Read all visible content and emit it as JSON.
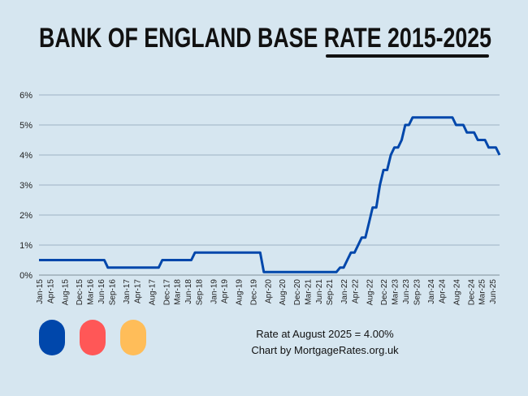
{
  "title": "BANK OF ENGLAND BASE RATE 2015-2025",
  "footer": {
    "rate_note": "Rate at August 2025 = 4.00%",
    "credit": "Chart by MortgageRates.org.uk"
  },
  "legend_pills": [
    {
      "color": "#0047ab"
    },
    {
      "color": "#ff5757"
    },
    {
      "color": "#ffbd59"
    }
  ],
  "colors": {
    "background": "#d6e6f0",
    "line": "#0047ab",
    "grid": "#9fb3c3"
  },
  "chart_data": {
    "type": "line",
    "title": "BANK OF ENGLAND BASE RATE 2015-2025",
    "xlabel": "",
    "ylabel": "",
    "x_range": [
      "2015-01",
      "2025-08"
    ],
    "ylim": [
      0,
      6
    ],
    "y_ticks": [
      "0%",
      "1%",
      "2%",
      "3%",
      "4%",
      "5%",
      "6%"
    ],
    "grid": "horizontal",
    "x_tick_labels": [
      "Jan-15",
      "Apr-15",
      "Aug-15",
      "Dec-15",
      "Mar-16",
      "Jun-16",
      "Sep-16",
      "Jan-17",
      "Apr-17",
      "Aug-17",
      "Dec-17",
      "Mar-18",
      "Jun-18",
      "Sep-18",
      "Jan-19",
      "Apr-19",
      "Aug-19",
      "Dec-19",
      "Apr-20",
      "Aug-20",
      "Dec-20",
      "Mar-21",
      "Jun-21",
      "Sep-21",
      "Jan-22",
      "Apr-22",
      "Aug-22",
      "Dec-22",
      "Mar-23",
      "Jun-23",
      "Sep-23",
      "Jan-24",
      "Apr-24",
      "Aug-24",
      "Dec-24",
      "Mar-25",
      "Jun-25"
    ],
    "rate_changes": [
      {
        "month": "2015-01",
        "rate": 0.5
      },
      {
        "month": "2016-08",
        "rate": 0.25
      },
      {
        "month": "2017-11",
        "rate": 0.5
      },
      {
        "month": "2018-08",
        "rate": 0.75
      },
      {
        "month": "2020-03",
        "rate": 0.1
      },
      {
        "month": "2021-12",
        "rate": 0.25
      },
      {
        "month": "2022-02",
        "rate": 0.5
      },
      {
        "month": "2022-03",
        "rate": 0.75
      },
      {
        "month": "2022-05",
        "rate": 1.0
      },
      {
        "month": "2022-06",
        "rate": 1.25
      },
      {
        "month": "2022-08",
        "rate": 1.75
      },
      {
        "month": "2022-09",
        "rate": 2.25
      },
      {
        "month": "2022-11",
        "rate": 3.0
      },
      {
        "month": "2022-12",
        "rate": 3.5
      },
      {
        "month": "2023-02",
        "rate": 4.0
      },
      {
        "month": "2023-03",
        "rate": 4.25
      },
      {
        "month": "2023-05",
        "rate": 4.5
      },
      {
        "month": "2023-06",
        "rate": 5.0
      },
      {
        "month": "2023-08",
        "rate": 5.25
      },
      {
        "month": "2024-08",
        "rate": 5.0
      },
      {
        "month": "2024-11",
        "rate": 4.75
      },
      {
        "month": "2025-02",
        "rate": 4.5
      },
      {
        "month": "2025-05",
        "rate": 4.25
      },
      {
        "month": "2025-08",
        "rate": 4.0
      }
    ]
  }
}
